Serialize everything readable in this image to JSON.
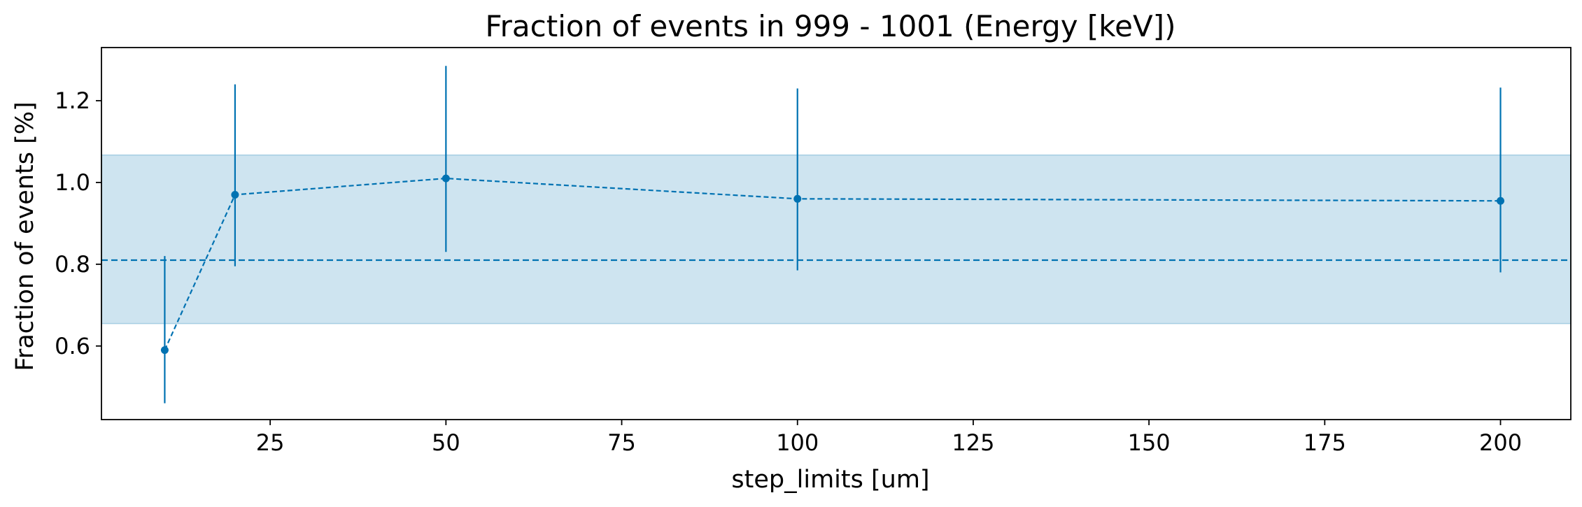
{
  "chart_data": {
    "type": "line",
    "title": "Fraction of events in 999 - 1001 (Energy [keV])",
    "xlabel": "step_limits [um]",
    "ylabel": "Fraction of events [%]",
    "xlim": [
      1,
      210
    ],
    "ylim": [
      0.42,
      1.33
    ],
    "xticks": [
      25,
      50,
      75,
      100,
      125,
      150,
      175,
      200
    ],
    "yticks": [
      0.6,
      0.8,
      1.0,
      1.2
    ],
    "ytick_labels": [
      "0.6",
      "0.8",
      "1.0",
      "1.2"
    ],
    "grid": false,
    "series": [
      {
        "style": "dashed line with markers and error bars",
        "color": "#0072B2",
        "x": [
          10,
          20,
          50,
          100,
          200
        ],
        "y": [
          0.59,
          0.97,
          1.01,
          0.96,
          0.955
        ],
        "yerr_low": [
          0.46,
          0.795,
          0.83,
          0.785,
          0.78
        ],
        "yerr_high": [
          0.82,
          1.24,
          1.285,
          1.23,
          1.232
        ]
      }
    ],
    "reference_line": {
      "y": 0.81,
      "style": "dashed",
      "color": "#0072B2"
    },
    "band": {
      "y_low": 0.655,
      "y_high": 1.067,
      "color": "#A6CEE3",
      "opacity": 0.55
    }
  }
}
